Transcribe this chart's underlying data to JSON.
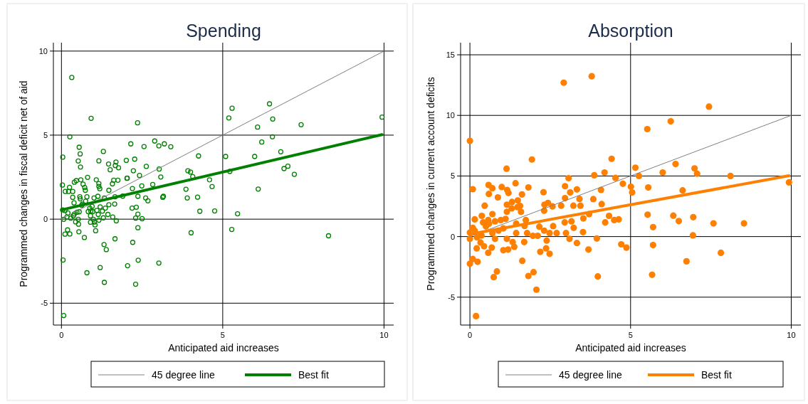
{
  "chart_data": [
    {
      "type": "scatter",
      "title": "Spending",
      "xlabel": "Anticipated aid increases",
      "ylabel": "Programmed changes in fiscal deficit net of aid",
      "xlim": [
        -0.25,
        10.3
      ],
      "ylim": [
        -6.3,
        10.5
      ],
      "xticks": [
        0,
        5,
        10
      ],
      "yticks": [
        -5,
        0,
        5,
        10
      ],
      "grid": true,
      "legend": "bottom",
      "series": [
        {
          "marker": "circle",
          "color": "#008000",
          "x": [
            0.32,
            0.92,
            2.36,
            0.26,
            0.04,
            0.55,
            0.58,
            0.52,
            0.59,
            1.3,
            1.16,
            2.15,
            2.56,
            2.89,
            3.02,
            3.19,
            3.39,
            1.46,
            1.51,
            1.69,
            1.67,
            1.77,
            2.01,
            2.27,
            2.23,
            2.63,
            2.42,
            2.03,
            3.03,
            3.08,
            4.25,
            3.92,
            4.0,
            4.07,
            4.59,
            4.67,
            0.03,
            0.81,
            0.4,
            0.46,
            0.6,
            0.25,
            0.12,
            0.22,
            0.35,
            0.67,
            0.72,
            0.74,
            0.35,
            0.39,
            0.57,
            0.58,
            0.79,
            1.08,
            1.16,
            1.16,
            1.19,
            1.58,
            1.62,
            1.75,
            1.47,
            2.04,
            2.2,
            2.49,
            2.83,
            2.37,
            2.61,
            2.68,
            1.9,
            1.66,
            1.01,
            1.13,
            1.33,
            0.75,
            0.65,
            3.14,
            3.16,
            3.86,
            3.9,
            4.22,
            4.29,
            4.75,
            4.02,
            2.19,
            2.32,
            2.37,
            2.3,
            2.5,
            2.37,
            2.21,
            2.38,
            2.05,
            3.02,
            2.3,
            1.66,
            1.32,
            1.39,
            1.2,
            0.79,
            1.33,
            0.05,
            0.07,
            0.11,
            0.19,
            0.26,
            0.54,
            0.71,
            1.06,
            1.7,
            1.59,
            1.44,
            1.3,
            1.16,
            1.14,
            1.04,
            1.02,
            0.99,
            0.9,
            0.9,
            0.88,
            0.83,
            0.91,
            0.97,
            1.2,
            1.27,
            1.36,
            1.47,
            1.65,
            0.55,
            0.52,
            0.53,
            0.44,
            0.37,
            0.29,
            0.17,
            0.07,
            0.04,
            0.11,
            0.2,
            0.4,
            0.48,
            0.63,
            0.95,
            1.1,
            5.29,
            5.19,
            6.45,
            6.55,
            6.08,
            7.43,
            9.94,
            6.54,
            6.21,
            5.09,
            5.99,
            6.8,
            6.9,
            7.02,
            7.22,
            5.22,
            6.1,
            5.46,
            5.28,
            8.28
          ],
          "values": [
            8.43,
            6.0,
            5.73,
            4.9,
            3.69,
            4.28,
            3.88,
            3.46,
            3.1,
            4.03,
            3.47,
            4.48,
            4.32,
            4.65,
            4.36,
            4.48,
            4.31,
            3.28,
            2.94,
            3.4,
            3.19,
            3.06,
            3.5,
            3.57,
            2.88,
            3.14,
            2.6,
            2.43,
            2.98,
            2.51,
            3.76,
            2.88,
            2.8,
            2.53,
            2.34,
            1.94,
            2.03,
            2.49,
            2.2,
            2.29,
            2.34,
            1.89,
            1.65,
            1.65,
            1.65,
            2.08,
            1.88,
            1.72,
            1.3,
            0.97,
            1.33,
            1.21,
            1.33,
            2.34,
            2.12,
            1.95,
            1.81,
            2.1,
            2.32,
            2.32,
            1.72,
            2.44,
            1.82,
            1.98,
            2.06,
            1.36,
            1.26,
            1.09,
            1.37,
            1.33,
            1.26,
            1.36,
            1.26,
            1.07,
            0.9,
            1.3,
            1.36,
            1.78,
            1.26,
            1.31,
            0.47,
            0.49,
            -0.81,
            0.66,
            0.71,
            0.3,
            0.06,
            0.03,
            -0.51,
            -1.38,
            -2.44,
            -2.77,
            -2.61,
            -3.87,
            -1.17,
            -1.51,
            -1.81,
            -2.88,
            -3.19,
            -3.76,
            -2.43,
            -5.73,
            -0.89,
            -0.64,
            -0.88,
            -0.75,
            -1.09,
            -0.69,
            -0.1,
            0.13,
            0.28,
            0.08,
            -0.06,
            0.28,
            -0.34,
            -0.17,
            -0.01,
            -0.18,
            0.2,
            0.66,
            0.45,
            0.48,
            0.45,
            0.73,
            0.48,
            0.66,
            0.86,
            0.9,
            0.44,
            -0.01,
            -0.3,
            -0.16,
            0.2,
            0.06,
            0.13,
            -0.01,
            0.55,
            0.51,
            0.37,
            0.31,
            0.41,
            0.83,
            0.76,
            0.52,
            6.6,
            6.02,
            6.86,
            5.96,
            5.48,
            5.62,
            6.07,
            4.9,
            4.59,
            3.73,
            3.73,
            4.01,
            3.01,
            3.15,
            2.67,
            2.84,
            1.79,
            0.32,
            -0.61,
            -0.99
          ]
        },
        {
          "type": "line",
          "name": "45 degree line",
          "color": "#808080",
          "x": [
            0,
            10
          ],
          "values": [
            0,
            10
          ]
        },
        {
          "type": "line",
          "name": "Best fit",
          "color": "#008000",
          "x": [
            0,
            9.94
          ],
          "values": [
            0.55,
            5.03
          ]
        }
      ]
    },
    {
      "type": "scatter",
      "title": "Absorption",
      "xlabel": "Anticipated aid increases",
      "ylabel": "Programmed changes in current account deficits",
      "xlim": [
        -0.29,
        10.3
      ],
      "ylim": [
        -7.3,
        16
      ],
      "xticks": [
        0,
        5,
        10
      ],
      "yticks": [
        -5,
        0,
        5,
        10,
        15
      ],
      "grid": true,
      "legend": "bottom",
      "series": [
        {
          "marker": "circle",
          "color": "#ff8000",
          "x": [
            2.92,
            3.79,
            0,
            1.93,
            1.14,
            4.41,
            3.87,
            4.19,
            3.07,
            4.53,
            4.76,
            5.01,
            5.05,
            2.96,
            3.33,
            3.12,
            3.41,
            4.08,
            3.84,
            4.1,
            2.96,
            2.29,
            2.43,
            1.82,
            1.62,
            1.42,
            1.2,
            1.16,
            0.99,
            0.87,
            0.58,
            0.59,
            0.7,
            0.09,
            0.46,
            2.32,
            2.31,
            1.49,
            1.31,
            1.15,
            1.56,
            2.57,
            2.84,
            3.22,
            3.44,
            3.53,
            3.71,
            4.33,
            4.21,
            4.49,
            4.63,
            2.95,
            3.16,
            3.23,
            2.59,
            2.16,
            2.31,
            2.48,
            2.7,
            2.99,
            3.52,
            3.1,
            3.33,
            3.69,
            3.95,
            4.71,
            4.87,
            3.98,
            2.39,
            2.37,
            2.48,
            2.19,
            2.11,
            1.96,
            1.78,
            1.69,
            1.63,
            1.82,
            1.98,
            2.07,
            1.38,
            1.33,
            1.15,
            1.19,
            1.04,
            0.74,
            0.84,
            0.57,
            0.68,
            0.44,
            0.21,
            0.33,
            0.24,
            0.09,
            0,
            0.19,
            0,
            0,
            0.09,
            0.15,
            0.22,
            0.36,
            0.41,
            0.15,
            0.37,
            0.57,
            0.5,
            0.59,
            0.7,
            0.78,
            0.7,
            0.78,
            0.89,
            0.96,
            1.04,
            1.11,
            1.15,
            1.3,
            1.48,
            1.59,
            1.44,
            1.44,
            1.7,
            1.74,
            7.44,
            6.25,
            5.52,
            5.15,
            5.26,
            6.0,
            6.4,
            6.99,
            7.07,
            8.11,
            9.93,
            5.55,
            6.62,
            5.53,
            6.33,
            6.5,
            6.95,
            7.58,
            8.53,
            5.7,
            6.94,
            5.7,
            7.81,
            6.74,
            5.67
          ],
          "values": [
            12.7,
            13.23,
            7.9,
            6.36,
            5.6,
            6.42,
            5.06,
            5.29,
            4.82,
            4.84,
            4.36,
            4.11,
            3.64,
            4.16,
            3.89,
            3.64,
            3.11,
            3.85,
            3.09,
            2.68,
            3.17,
            3.66,
            2.78,
            4.05,
            3.48,
            4.4,
            3.6,
            3.85,
            4.09,
            3.23,
            4.26,
            3.52,
            3.99,
            3.91,
            2.55,
            2.63,
            2.14,
            2.98,
            2.86,
            2.63,
            2.53,
            2.49,
            2.55,
            2.55,
            2.55,
            1.5,
            1.85,
            1.71,
            1.17,
            1.36,
            1.42,
            1.17,
            1.26,
            0.72,
            0.86,
            0.82,
            0.49,
            0.29,
            0.29,
            0.29,
            0.37,
            -0.19,
            -0.53,
            -1.07,
            -0.16,
            -0.64,
            -0.91,
            -3.29,
            -0.33,
            -0.97,
            -1.42,
            -1.26,
            0.06,
            0.06,
            0.29,
            -0.45,
            -2.0,
            -3.25,
            -2.94,
            -4.38,
            -0.84,
            -0.45,
            -0.19,
            -1.07,
            -1.13,
            -3.35,
            -2.88,
            -1.34,
            -0.91,
            -0.8,
            -0.97,
            -0.49,
            -2.08,
            -1.85,
            -2.24,
            -6.56,
            -0.19,
            0.33,
            0.72,
            0.49,
            -0.06,
            0.1,
            1.17,
            1.42,
            1.71,
            1.36,
            0.84,
            1.07,
            1.85,
            1.26,
            0.29,
            -0.19,
            0.49,
            1.36,
            0.68,
            1.46,
            2.04,
            2.33,
            2.43,
            2.04,
            1.07,
            0.29,
            0.88,
            1.36,
            10.72,
            9.51,
            8.87,
            5.68,
            5.0,
            5.29,
            5.99,
            5.62,
            5.19,
            5.0,
            4.47,
            4.05,
            3.81,
            1.81,
            1.73,
            1.28,
            1.6,
            1.09,
            1.09,
            0.78,
            0.1,
            -0.7,
            -1.34,
            -2.04,
            -3.15
          ]
        },
        {
          "type": "line",
          "name": "45 degree line",
          "color": "#808080",
          "x": [
            0,
            10
          ],
          "values": [
            0,
            10
          ]
        },
        {
          "type": "line",
          "name": "Best fit",
          "color": "#ff8000",
          "x": [
            0,
            9.93
          ],
          "values": [
            0.2,
            5.02
          ]
        }
      ]
    }
  ]
}
